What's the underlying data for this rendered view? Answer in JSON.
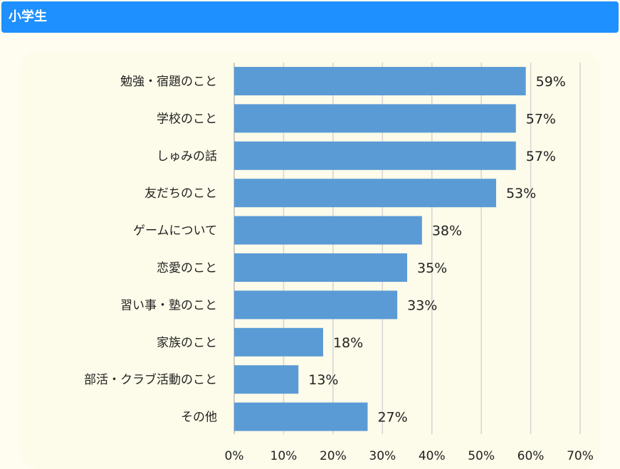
{
  "header": {
    "title": "小学生",
    "background": "#1e90ff"
  },
  "chart_data": {
    "type": "bar",
    "orientation": "horizontal",
    "categories": [
      "勉強・宿題のこと",
      "学校のこと",
      "しゅみの話",
      "友だちのこと",
      "ゲームについて",
      "恋愛のこと",
      "習い事・塾のこと",
      "家族のこと",
      "部活・クラブ活動のこと",
      "その他"
    ],
    "values": [
      59,
      57,
      57,
      53,
      38,
      35,
      33,
      18,
      13,
      27
    ],
    "value_labels": [
      "59%",
      "57%",
      "57%",
      "53%",
      "38%",
      "35%",
      "33%",
      "18%",
      "13%",
      "27%"
    ],
    "xticks": [
      "0%",
      "10%",
      "20%",
      "30%",
      "40%",
      "50%",
      "60%",
      "70%"
    ],
    "xlim": [
      0,
      70
    ],
    "grid": "vertical",
    "bar_color": "#5b9bd5",
    "title": "",
    "xlabel": "",
    "ylabel": ""
  }
}
